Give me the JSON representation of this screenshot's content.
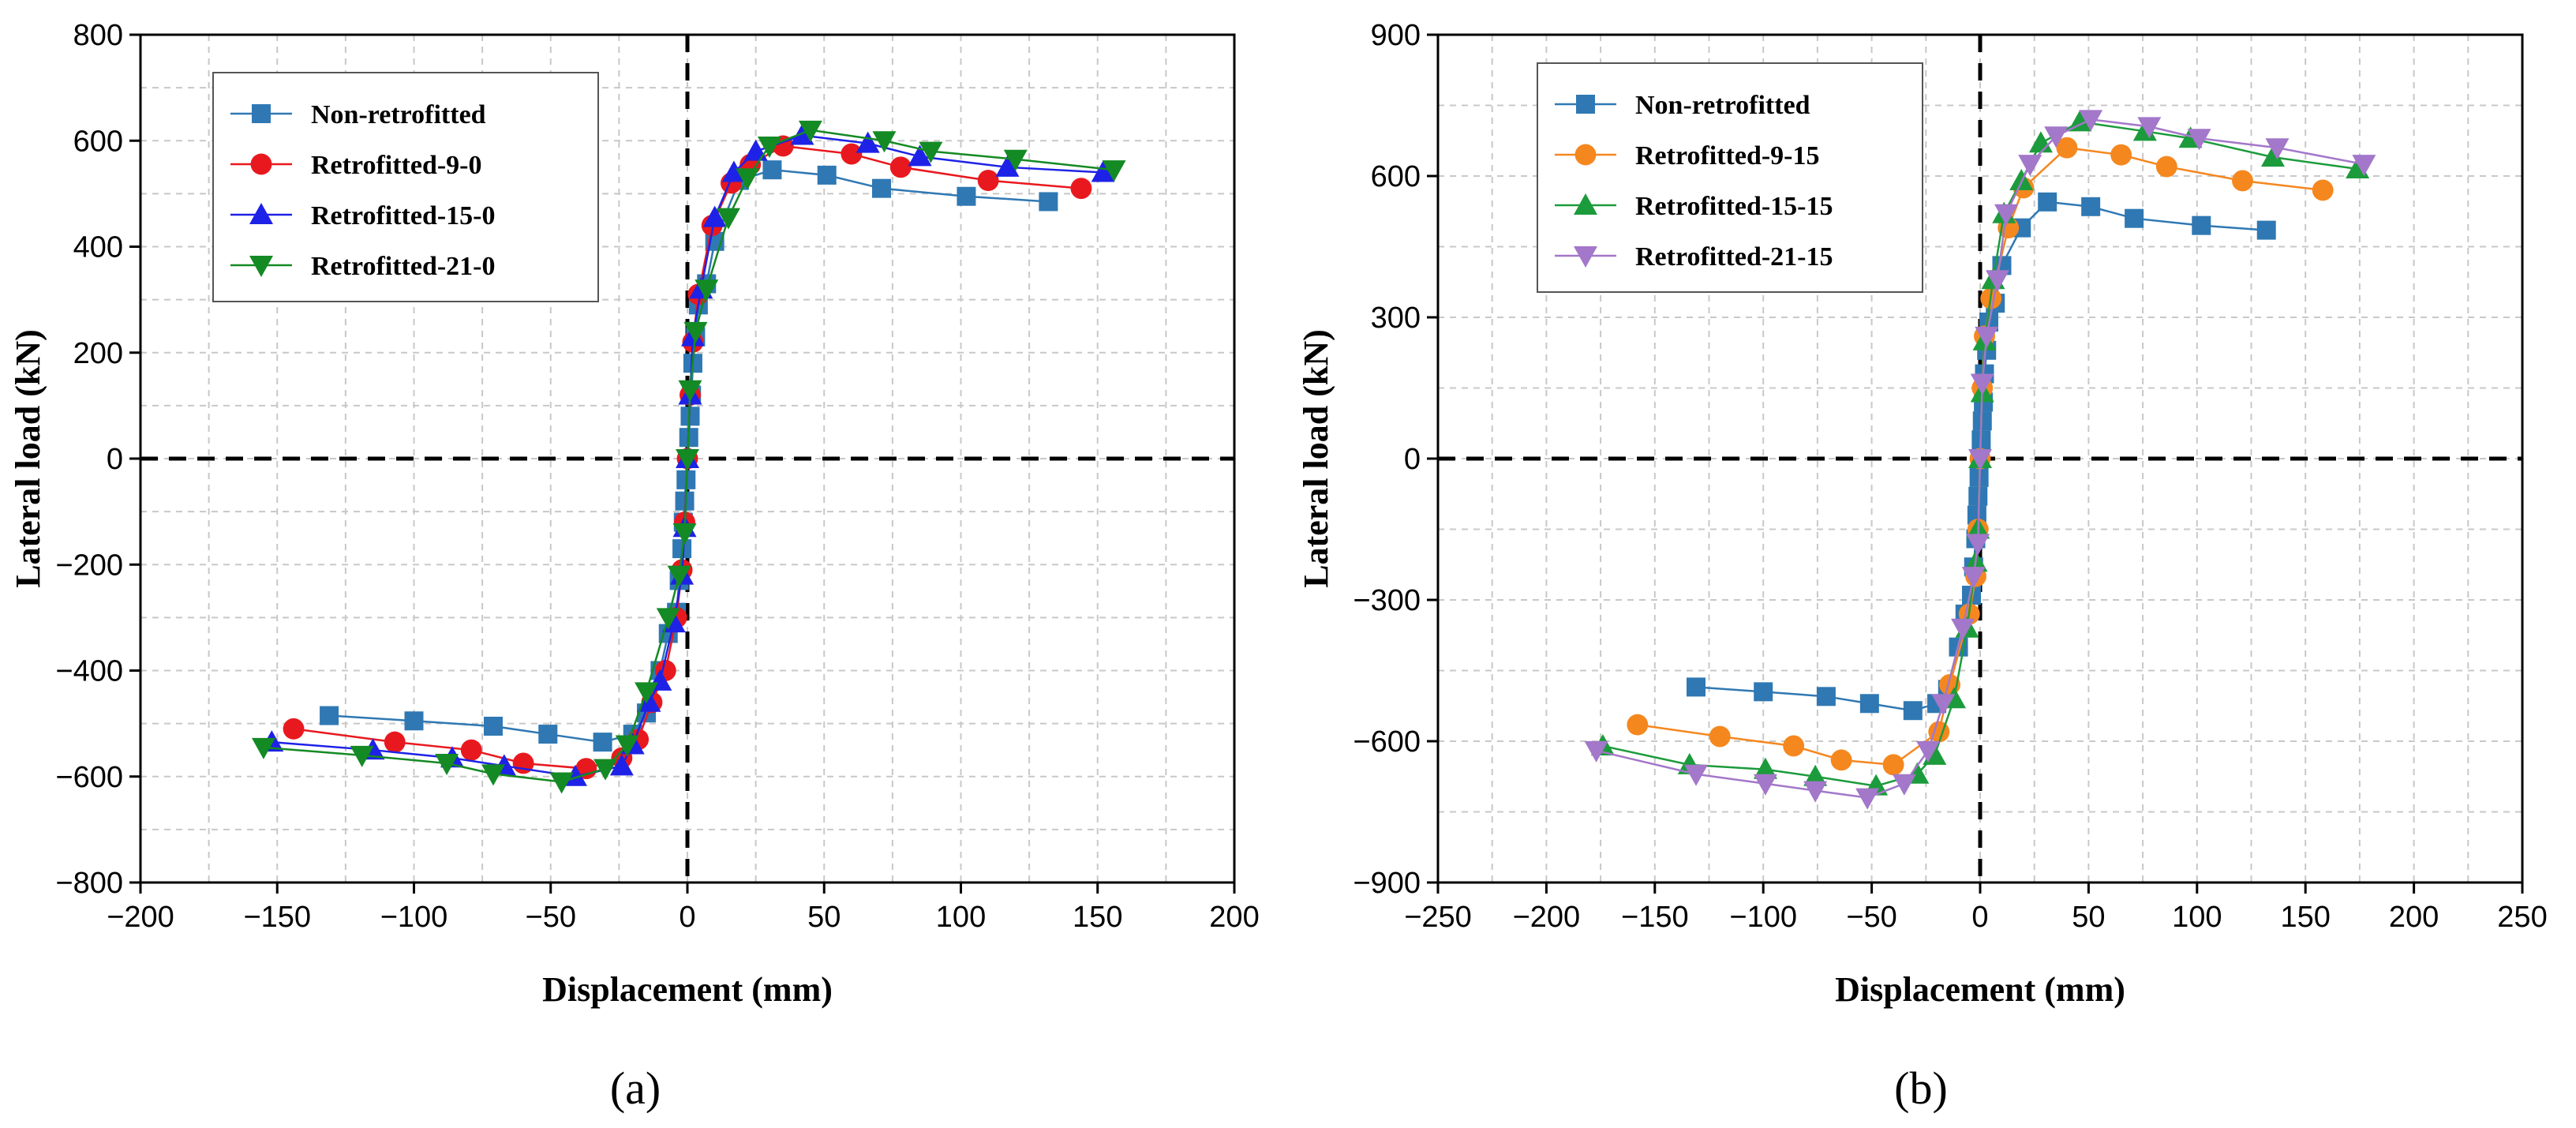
{
  "chart_data": [
    {
      "type": "line",
      "panel": "(a)",
      "xlabel": "Displacement (mm)",
      "ylabel": "Lateral load (kN)",
      "xlim": [
        -200,
        200
      ],
      "ylim": [
        -800,
        800
      ],
      "xticks": [
        -200,
        -150,
        -100,
        -50,
        0,
        50,
        100,
        150,
        200
      ],
      "yticks": [
        -800,
        -600,
        -400,
        -200,
        0,
        200,
        400,
        600,
        800
      ],
      "xtick_labels": [
        "−200",
        "−150",
        "−100",
        "−50",
        "0",
        "50",
        "100",
        "150",
        "200"
      ],
      "ytick_labels": [
        "−800",
        "−600",
        "−400",
        "−200",
        "0",
        "200",
        "400",
        "600",
        "800"
      ],
      "grid": true,
      "legend_position": "top-left",
      "series": [
        {
          "name": "Non-retrofitted",
          "color": "#2f78b3",
          "marker": "square",
          "x": [
            132,
            102,
            71,
            51,
            31,
            19,
            10,
            7,
            4,
            3,
            2,
            1.5,
            1,
            0.5,
            0,
            -0.5,
            -1,
            -1.5,
            -2,
            -3,
            -4,
            -7,
            -10,
            -15,
            -20,
            -31,
            -51,
            -71,
            -100,
            -131
          ],
          "y": [
            485,
            495,
            510,
            535,
            545,
            525,
            410,
            330,
            290,
            230,
            180,
            120,
            80,
            40,
            0,
            -40,
            -80,
            -120,
            -170,
            -230,
            -290,
            -330,
            -400,
            -480,
            -520,
            -535,
            -520,
            -505,
            -495,
            -485
          ]
        },
        {
          "name": "Retrofitted-9-0",
          "color": "#e8191e",
          "marker": "circle",
          "x": [
            144,
            110,
            78,
            60,
            35,
            23,
            16,
            9,
            4,
            2,
            1,
            0,
            -1,
            -2,
            -4,
            -8,
            -13,
            -18,
            -24,
            -37,
            -60,
            -79,
            -107,
            -144
          ],
          "y": [
            510,
            525,
            550,
            575,
            590,
            555,
            520,
            440,
            310,
            220,
            120,
            0,
            -120,
            -210,
            -300,
            -400,
            -460,
            -530,
            -565,
            -585,
            -575,
            -550,
            -535,
            -510
          ]
        },
        {
          "name": "Retrofitted-15-0",
          "color": "#1e22e6",
          "marker": "triangle-up",
          "x": [
            152,
            117,
            85,
            66,
            42,
            25,
            17,
            10,
            5,
            2,
            1,
            0,
            -1,
            -2,
            -5,
            -10,
            -14,
            -20,
            -24,
            -41,
            -67,
            -86,
            -115,
            -152
          ],
          "y": [
            540,
            550,
            570,
            595,
            610,
            580,
            540,
            455,
            320,
            230,
            120,
            0,
            -130,
            -220,
            -310,
            -420,
            -460,
            -540,
            -580,
            -600,
            -580,
            -565,
            -550,
            -535
          ]
        },
        {
          "name": "Retrofitted-21-0",
          "color": "#148a24",
          "marker": "triangle-down",
          "x": [
            156,
            120,
            89,
            72,
            45,
            30,
            22,
            15,
            7,
            3,
            1,
            0,
            -1,
            -3,
            -7,
            -15,
            -22,
            -30,
            -46,
            -71,
            -88,
            -119,
            -155
          ],
          "y": [
            545,
            565,
            580,
            600,
            620,
            590,
            530,
            455,
            320,
            240,
            130,
            0,
            -140,
            -220,
            -300,
            -440,
            -540,
            -585,
            -610,
            -595,
            -575,
            -560,
            -545
          ]
        }
      ]
    },
    {
      "type": "line",
      "panel": "(b)",
      "xlabel": "Displacement (mm)",
      "ylabel": "Lateral load (kN)",
      "xlim": [
        -250,
        250
      ],
      "ylim": [
        -900,
        900
      ],
      "xticks": [
        -250,
        -200,
        -150,
        -100,
        -50,
        0,
        50,
        100,
        150,
        200,
        250
      ],
      "yticks": [
        -900,
        -600,
        -300,
        0,
        300,
        600,
        900
      ],
      "xtick_labels": [
        "−250",
        "−200",
        "−150",
        "−100",
        "−50",
        "0",
        "50",
        "100",
        "150",
        "200",
        "250"
      ],
      "ytick_labels": [
        "−900",
        "−600",
        "−300",
        "0",
        "300",
        "600",
        "900"
      ],
      "grid": true,
      "legend_position": "top-left",
      "series": [
        {
          "name": "Non-retrofitted",
          "color": "#2f78b3",
          "marker": "square",
          "x": [
            132,
            102,
            71,
            51,
            31,
            19,
            10,
            7,
            4,
            3,
            2,
            1.5,
            1,
            0.5,
            0,
            -0.5,
            -1,
            -1.5,
            -2,
            -3,
            -4,
            -7,
            -10,
            -15,
            -20,
            -31,
            -51,
            -71,
            -100,
            -131
          ],
          "y": [
            485,
            495,
            510,
            535,
            545,
            490,
            410,
            330,
            290,
            230,
            180,
            120,
            80,
            40,
            0,
            -40,
            -80,
            -120,
            -170,
            -230,
            -290,
            -330,
            -400,
            -490,
            -520,
            -535,
            -520,
            -505,
            -495,
            -485
          ]
        },
        {
          "name": "Retrofitted-9-15",
          "color": "#f5871f",
          "marker": "circle",
          "x": [
            158,
            121,
            86,
            65,
            40,
            20,
            13,
            5,
            2,
            1,
            0,
            -1,
            -2,
            -5,
            -14,
            -19,
            -40,
            -64,
            -86,
            -120,
            -158
          ],
          "y": [
            570,
            590,
            620,
            645,
            660,
            575,
            490,
            340,
            260,
            150,
            0,
            -150,
            -250,
            -330,
            -480,
            -580,
            -650,
            -640,
            -610,
            -590,
            -565
          ]
        },
        {
          "name": "Retrofitted-15-15",
          "color": "#1c9b3c",
          "marker": "triangle-up",
          "x": [
            174,
            135,
            97,
            76,
            46,
            28,
            19,
            11,
            6,
            2,
            1,
            0,
            -1,
            -2,
            -6,
            -12,
            -21,
            -29,
            -48,
            -76,
            -99,
            -134,
            -174
          ],
          "y": [
            615,
            640,
            680,
            695,
            715,
            670,
            590,
            520,
            380,
            250,
            140,
            0,
            -150,
            -220,
            -360,
            -510,
            -630,
            -670,
            -695,
            -675,
            -660,
            -650,
            -610
          ]
        },
        {
          "name": "Retrofitted-21-15",
          "color": "#a377c9",
          "marker": "triangle-down",
          "x": [
            177,
            137,
            101,
            78,
            51,
            35,
            23,
            12,
            8,
            3,
            1,
            0,
            -1,
            -3,
            -8,
            -17,
            -24,
            -35,
            -52,
            -76,
            -99,
            -131,
            -177
          ],
          "y": [
            625,
            660,
            680,
            705,
            720,
            685,
            625,
            520,
            380,
            260,
            160,
            0,
            -180,
            -250,
            -360,
            -520,
            -620,
            -690,
            -720,
            -705,
            -690,
            -670,
            -620
          ]
        }
      ]
    }
  ]
}
